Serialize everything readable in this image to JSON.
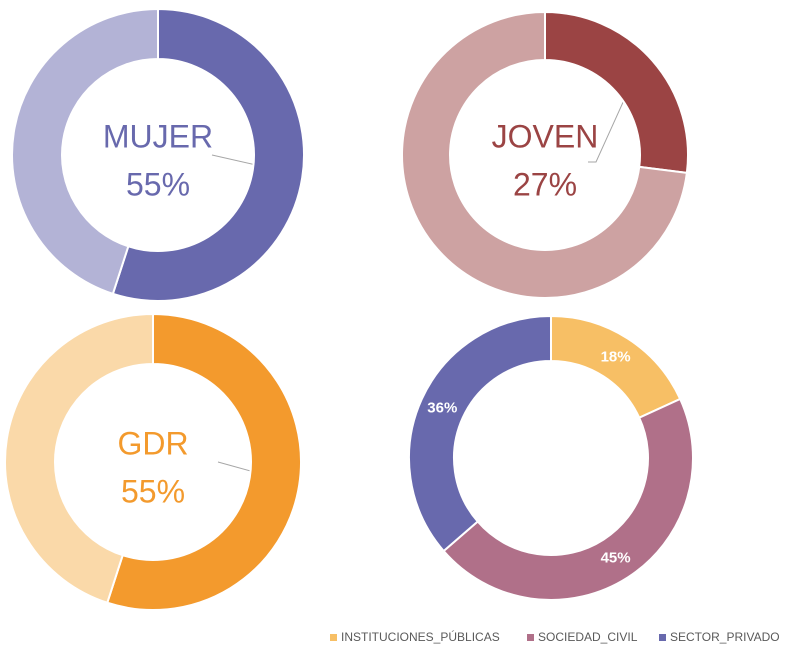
{
  "chart_data": [
    {
      "type": "donut",
      "center_label": "MUJER",
      "values": [
        55,
        45
      ],
      "value_labels": [
        "55%",
        null
      ],
      "colors": [
        "#6869ad",
        "#b3b3d6"
      ]
    },
    {
      "type": "donut",
      "center_label": "JOVEN",
      "values": [
        27,
        73
      ],
      "value_labels": [
        "27%",
        null
      ],
      "colors": [
        "#9b4444",
        "#cda2a2"
      ]
    },
    {
      "type": "donut",
      "center_label": "GDR",
      "values": [
        55,
        45
      ],
      "value_labels": [
        "55%",
        null
      ],
      "colors": [
        "#f39a2d",
        "#fad9a9"
      ]
    },
    {
      "type": "donut",
      "categories": [
        "INSTITUCIONES_PÚBLICAS",
        "SOCIEDAD_CIVIL",
        "SECTOR_PRIVADO"
      ],
      "values": [
        18,
        45,
        36
      ],
      "value_labels": [
        "18%",
        "45%",
        "36%"
      ],
      "colors": [
        "#f7bf65",
        "#b07089",
        "#6869ad"
      ],
      "legend": "bottom-right"
    }
  ]
}
